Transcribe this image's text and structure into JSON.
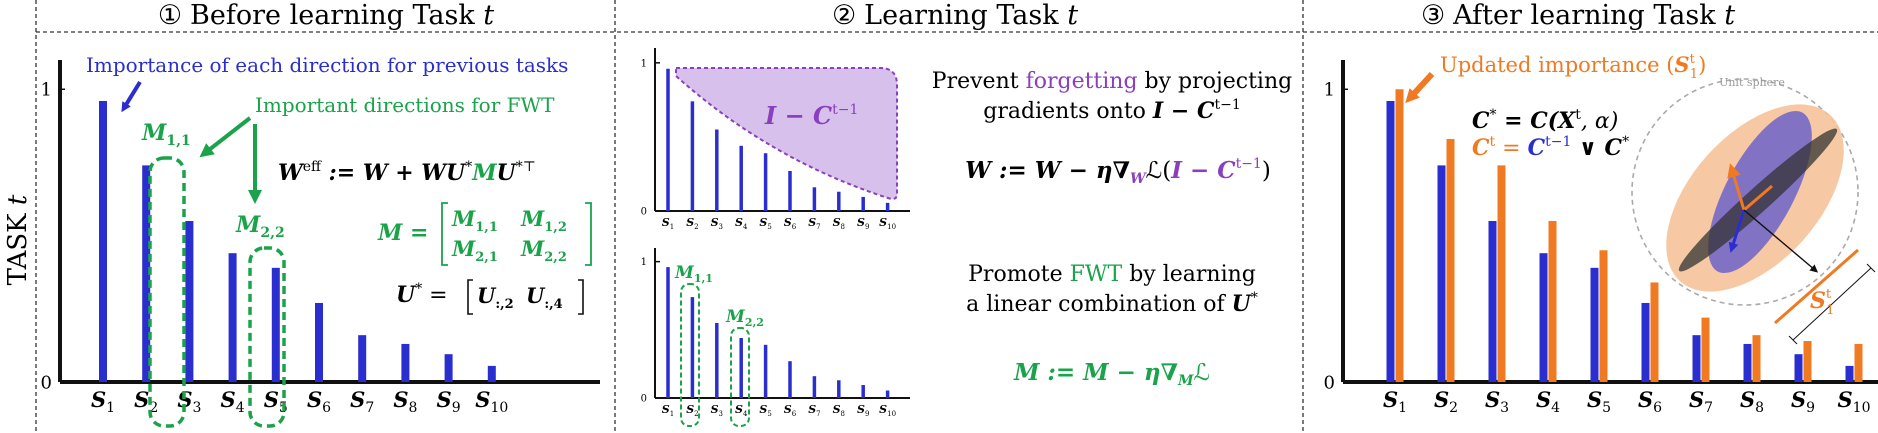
{
  "side_label": {
    "text": "TASK ",
    "var": "t"
  },
  "panels": [
    {
      "num": "①",
      "title": "Before learning Task ",
      "var": "t"
    },
    {
      "num": "②",
      "title": "Learning Task ",
      "var": "t"
    },
    {
      "num": "③",
      "title": "After learning Task ",
      "var": "t"
    }
  ],
  "colors": {
    "blue": "#2b2ecf",
    "green": "#1aa34a",
    "orange": "#f07a22",
    "purple": "#8a3fbf",
    "purple_fill": "#d7c0ec"
  },
  "chart_data": [
    {
      "type": "bar",
      "categories": [
        "S1",
        "S2",
        "S3",
        "S4",
        "S5",
        "S6",
        "S7",
        "S8",
        "S9",
        "S10"
      ],
      "series": [
        {
          "values": [
            0.96,
            0.74,
            0.55,
            0.44,
            0.39,
            0.27,
            0.16,
            0.13,
            0.095,
            0.055
          ]
        }
      ],
      "ylim": [
        0,
        1.1
      ],
      "yticks": [
        "0",
        "1"
      ]
    },
    {
      "type": "bar",
      "categories": [
        "S1",
        "S2",
        "S3",
        "S4",
        "S5",
        "S6",
        "S7",
        "S8",
        "S9",
        "S10"
      ],
      "series": [
        {
          "values": [
            0.96,
            0.74,
            0.55,
            0.44,
            0.39,
            0.27,
            0.16,
            0.13,
            0.095,
            0.055
          ]
        }
      ],
      "ylim": [
        0,
        1.1
      ],
      "yticks": [
        "0",
        "1"
      ]
    },
    {
      "type": "bar",
      "categories": [
        "S1",
        "S2",
        "S3",
        "S4",
        "S5",
        "S6",
        "S7",
        "S8",
        "S9",
        "S10"
      ],
      "series": [
        {
          "values": [
            0.96,
            0.74,
            0.55,
            0.44,
            0.39,
            0.27,
            0.16,
            0.13,
            0.095,
            0.055
          ]
        }
      ],
      "ylim": [
        0,
        1.1
      ],
      "yticks": [
        "0",
        "1"
      ]
    },
    {
      "type": "bar",
      "categories": [
        "S1",
        "S2",
        "S3",
        "S4",
        "S5",
        "S6",
        "S7",
        "S8",
        "S9",
        "S10"
      ],
      "series": [
        {
          "values": [
            0.96,
            0.74,
            0.55,
            0.44,
            0.39,
            0.27,
            0.16,
            0.13,
            0.095,
            0.055
          ]
        },
        {
          "values": [
            1.0,
            0.83,
            0.74,
            0.55,
            0.45,
            0.34,
            0.22,
            0.16,
            0.14,
            0.13
          ]
        }
      ],
      "ylim": [
        0,
        1.1
      ],
      "yticks": [
        "0",
        "1"
      ]
    }
  ],
  "p1": {
    "importance_label": "Importance of each direction for previous tasks",
    "fwt_label": "Important directions for FWT",
    "m11": "M",
    "m11_sub": "1,1",
    "m22": "M",
    "m22_sub": "2,2",
    "weff_eq": "W",
    "weff_sup": "eff",
    "weff_rhs": " := W + WU",
    "weff_star": "*",
    "weff_m": "M",
    "weff_u": "U",
    "weff_sup2": "*⊤",
    "m_eq": "M =",
    "m_cells": [
      "M",
      "1,1",
      "M",
      "1,2",
      "M",
      "2,1",
      "M",
      "2,2"
    ],
    "u_eq": "U",
    "u_star": "*",
    "u_rhs": " = ",
    "u_cells": [
      "U",
      ":,2",
      "U",
      ":,4"
    ]
  },
  "p2": {
    "region_label": "I − C",
    "region_sup": "t−1",
    "m11": "M",
    "m11_sub": "1,1",
    "m22": "M",
    "m22_sub": "2,2",
    "text1_a": "Prevent ",
    "text1_b": "forgetting",
    "text1_c": " by projecting",
    "text2_a": "gradients onto ",
    "text2_b": "I − C",
    "text2_sup": "t−1",
    "w_eq_a": "W := W − η∇",
    "w_eq_sub": "W",
    "w_eq_b": "ℒ(",
    "w_eq_c": "I − C",
    "w_eq_sup": "t−1",
    "w_eq_d": ")",
    "text3_a": "Promote ",
    "text3_b": "FWT",
    "text3_c": " by learning",
    "text4_a": "a linear combination of ",
    "text4_b": "U",
    "text4_sup": "*",
    "m_eq_a": "M := M − η∇",
    "m_eq_sub": "M",
    "m_eq_b": "ℒ"
  },
  "p3": {
    "updated_a": "Updated importance (",
    "updated_s": "S",
    "updated_sup": "t",
    "updated_sub": "1",
    "updated_b": ")",
    "unit_sphere": "Unit sphere",
    "cstar_a": "C",
    "cstar_sup": "*",
    "cstar_b": " = C(X",
    "cstar_sup2": "t",
    "cstar_c": ", α)",
    "ct_a": "C",
    "ct_sup": "t",
    "ct_b": " = ",
    "ct_c": "C",
    "ct_sup2": "t−1",
    "ct_d": " ∨ C",
    "ct_sup3": "*",
    "s1_label": "S",
    "s1_sup": "t",
    "s1_sub": "1"
  }
}
